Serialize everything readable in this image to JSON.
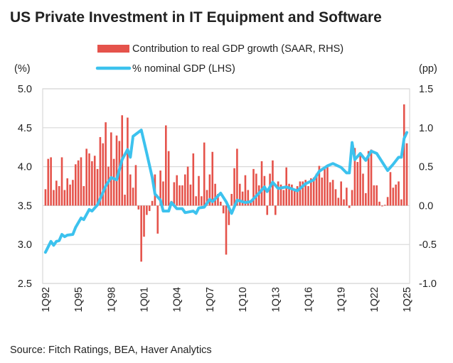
{
  "chart_data": {
    "type": "bar+line",
    "title": "US Private Investment in IT Equipment and Software",
    "source": "Source: Fitch Ratings, BEA, Haver Analytics",
    "left_axis": {
      "unit_label": "(%)",
      "range": [
        2.5,
        5.0
      ],
      "ticks": [
        "2.5",
        "3.0",
        "3.5",
        "4.0",
        "4.5",
        "5.0"
      ]
    },
    "right_axis": {
      "unit_label": "(pp)",
      "range": [
        -1.0,
        1.5
      ],
      "ticks": [
        "-1.0",
        "-0.5",
        "0.0",
        "0.5",
        "1.0",
        "1.5"
      ]
    },
    "x_axis": {
      "start": "1Q92",
      "end": "1Q25",
      "ticks": [
        "1Q92",
        "1Q95",
        "1Q98",
        "1Q01",
        "1Q04",
        "1Q07",
        "1Q10",
        "1Q13",
        "1Q16",
        "1Q19",
        "1Q22",
        "1Q25"
      ]
    },
    "grid": true,
    "legend": {
      "placement": "top-center",
      "entries": [
        "Contribution to real GDP growth (SAAR, RHS)",
        "% nominal GDP (LHS)"
      ]
    },
    "colors": {
      "bars": "#E5534B",
      "line": "#3CC2EE",
      "grid": "#D9D9D9"
    },
    "bar_series": {
      "name": "Contribution to real GDP growth (SAAR, RHS)",
      "axis": "right",
      "values": [
        0.21,
        0.6,
        0.62,
        0.2,
        0.32,
        0.25,
        0.62,
        0.2,
        0.35,
        0.27,
        0.33,
        0.53,
        0.58,
        0.62,
        0.25,
        0.73,
        0.67,
        0.57,
        0.64,
        0.47,
        0.88,
        0.8,
        1.07,
        0.5,
        0.94,
        0.6,
        0.9,
        0.83,
        1.16,
        0.14,
        1.13,
        0.4,
        0.23,
        0.52,
        -0.05,
        -0.72,
        -0.4,
        -0.12,
        -0.07,
        0.06,
        0.4,
        -0.36,
        0.45,
        0.31,
        1.03,
        0.7,
        0.06,
        0.3,
        0.39,
        0.26,
        0.26,
        0.4,
        0.5,
        0.27,
        0.67,
        0.12,
        0.38,
        0.12,
        0.81,
        0.2,
        0.4,
        0.69,
        0.28,
        0.15,
        0.05,
        -0.1,
        -0.63,
        -0.25,
        0.15,
        0.48,
        0.73,
        0.28,
        0.18,
        0.39,
        0.2,
        0.07,
        0.47,
        0.41,
        0.26,
        0.57,
        0.38,
        -0.12,
        0.41,
        0.58,
        -0.12,
        0.31,
        0.27,
        0.2,
        0.49,
        0.28,
        0.27,
        0.2,
        0.25,
        0.31,
        0.31,
        0.33,
        0.25,
        0.35,
        0.36,
        0.41,
        0.51,
        0.36,
        0.5,
        0.5,
        0.3,
        0.33,
        0.21,
        0.1,
        0.31,
        0.08,
        0.23,
        -0.03,
        0.2,
        0.74,
        0.56,
        0.65,
        0.41,
        0.16,
        0.7,
        0.72,
        0.26,
        0.26,
        0.05,
        -0.01,
        0.01,
        0.11,
        0.43,
        0.23,
        0.27,
        0.31,
        0.08,
        1.3,
        0.8
      ]
    },
    "line_series": {
      "name": "% nominal GDP (LHS)",
      "axis": "left",
      "points": [
        [
          "1Q92",
          2.9
        ],
        [
          "3Q92",
          3.04
        ],
        [
          "4Q92",
          2.99
        ],
        [
          "1Q93",
          3.04
        ],
        [
          "2Q93",
          3.05
        ],
        [
          "3Q93",
          3.13
        ],
        [
          "4Q93",
          3.1
        ],
        [
          "1Q94",
          3.12
        ],
        [
          "3Q94",
          3.13
        ],
        [
          "4Q94",
          3.22
        ],
        [
          "2Q95",
          3.34
        ],
        [
          "3Q95",
          3.32
        ],
        [
          "1Q96",
          3.45
        ],
        [
          "2Q96",
          3.43
        ],
        [
          "4Q96",
          3.51
        ],
        [
          "3Q97",
          3.75
        ],
        [
          "1Q98",
          3.86
        ],
        [
          "3Q98",
          3.83
        ],
        [
          "1Q99",
          4.09
        ],
        [
          "3Q99",
          4.22
        ],
        [
          "4Q99",
          4.12
        ],
        [
          "1Q00",
          4.39
        ],
        [
          "4Q00",
          4.47
        ],
        [
          "2Q01",
          4.17
        ],
        [
          "4Q01",
          3.86
        ],
        [
          "1Q02",
          3.65
        ],
        [
          "3Q02",
          3.57
        ],
        [
          "4Q02",
          3.43
        ],
        [
          "2Q03",
          3.43
        ],
        [
          "3Q03",
          3.54
        ],
        [
          "1Q04",
          3.46
        ],
        [
          "3Q04",
          3.46
        ],
        [
          "4Q04",
          3.41
        ],
        [
          "3Q05",
          3.43
        ],
        [
          "4Q05",
          3.4
        ],
        [
          "1Q06",
          3.47
        ],
        [
          "3Q06",
          3.48
        ],
        [
          "1Q07",
          3.58
        ],
        [
          "2Q07",
          3.55
        ],
        [
          "1Q08",
          3.66
        ],
        [
          "3Q08",
          3.55
        ],
        [
          "1Q09",
          3.4
        ],
        [
          "3Q09",
          3.57
        ],
        [
          "2Q10",
          3.54
        ],
        [
          "4Q10",
          3.55
        ],
        [
          "3Q11",
          3.66
        ],
        [
          "1Q12",
          3.74
        ],
        [
          "2Q12",
          3.68
        ],
        [
          "4Q12",
          3.8
        ],
        [
          "2Q13",
          3.72
        ],
        [
          "1Q14",
          3.74
        ],
        [
          "1Q15",
          3.69
        ],
        [
          "4Q15",
          3.78
        ],
        [
          "3Q16",
          3.83
        ],
        [
          "1Q17",
          3.94
        ],
        [
          "4Q17",
          4.01
        ],
        [
          "2Q18",
          4.04
        ],
        [
          "1Q19",
          3.99
        ],
        [
          "3Q19",
          3.92
        ],
        [
          "4Q19",
          3.92
        ],
        [
          "1Q20",
          4.31
        ],
        [
          "2Q20",
          4.09
        ],
        [
          "4Q20",
          4.17
        ],
        [
          "2Q21",
          4.08
        ],
        [
          "4Q21",
          4.2
        ],
        [
          "2Q22",
          4.17
        ],
        [
          "4Q22",
          4.06
        ],
        [
          "2Q23",
          3.95
        ],
        [
          "4Q23",
          4.03
        ],
        [
          "2Q24",
          4.12
        ],
        [
          "3Q24",
          4.12
        ],
        [
          "4Q24",
          4.36
        ],
        [
          "1Q25",
          4.44
        ]
      ]
    }
  }
}
